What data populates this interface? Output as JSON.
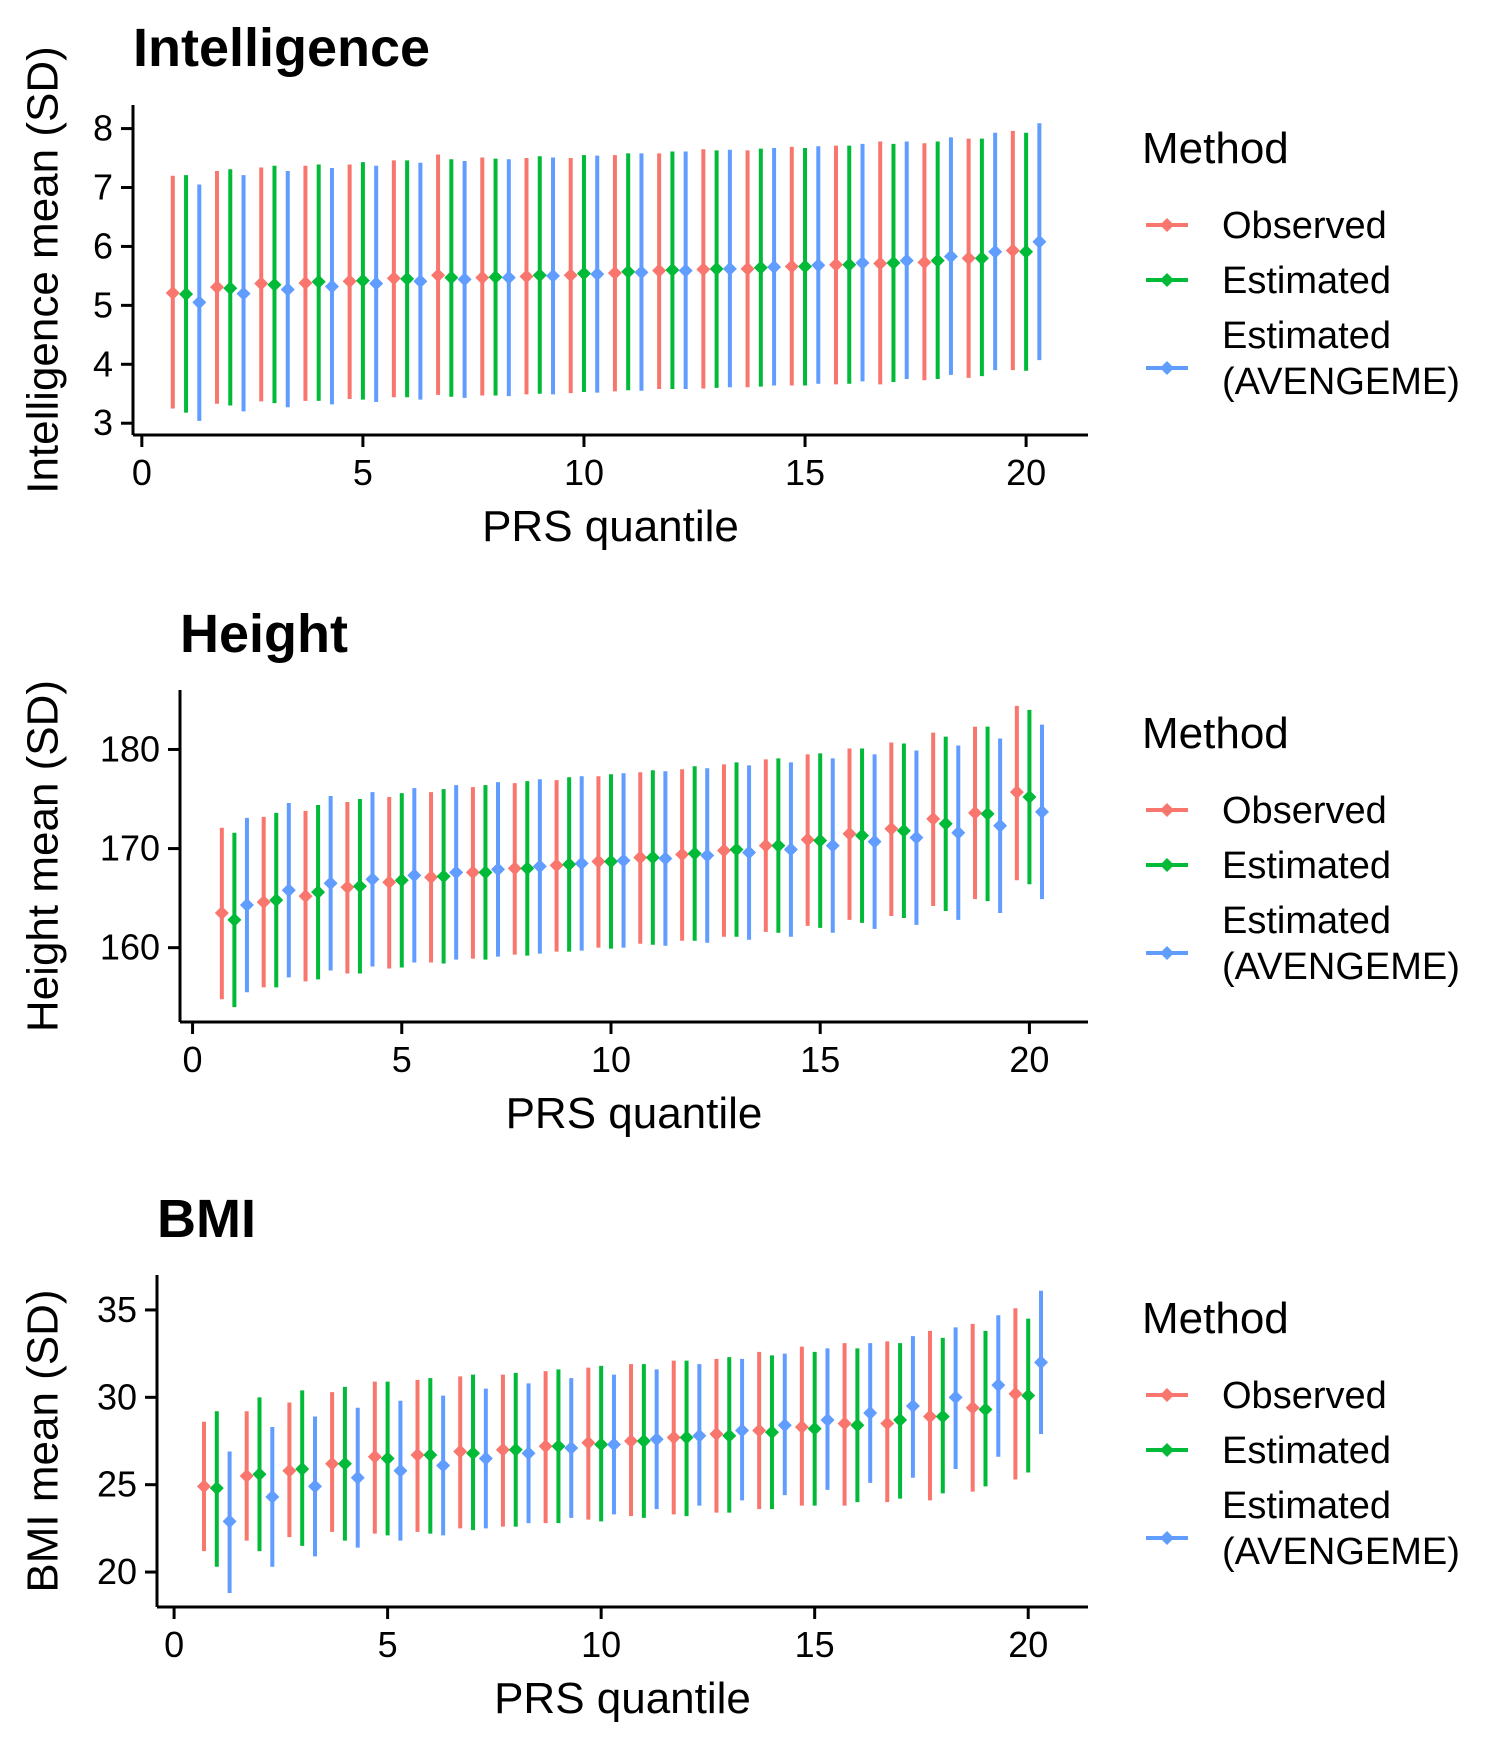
{
  "legend": {
    "title": "Method",
    "items": [
      {
        "key": "observed",
        "label_lines": [
          "Observed"
        ],
        "color": "#F8766D"
      },
      {
        "key": "estimated",
        "label_lines": [
          "Estimated"
        ],
        "color": "#00BA38"
      },
      {
        "key": "avengeme",
        "label_lines": [
          "Estimated",
          "(AVENGEME)"
        ],
        "color": "#619CFF"
      }
    ]
  },
  "chart_data": [
    {
      "type": "errorbar",
      "title": "Intelligence",
      "xlabel": "PRS quantile",
      "ylabel": "Intelligence mean (SD)",
      "xlim": [
        -0.2,
        21.4
      ],
      "ylim": [
        2.8,
        8.4
      ],
      "xticks": [
        0,
        5,
        10,
        15,
        20
      ],
      "yticks": [
        3,
        4,
        5,
        6,
        7,
        8
      ],
      "grid": false,
      "legend_position": "right",
      "series": [
        {
          "key": "observed",
          "x": [
            1,
            2,
            3,
            4,
            5,
            6,
            7,
            8,
            9,
            10,
            11,
            12,
            13,
            14,
            15,
            16,
            17,
            18,
            19,
            20
          ],
          "y": [
            5.21,
            5.31,
            5.37,
            5.38,
            5.41,
            5.46,
            5.51,
            5.47,
            5.49,
            5.51,
            5.55,
            5.59,
            5.61,
            5.62,
            5.66,
            5.69,
            5.71,
            5.73,
            5.8,
            5.93
          ],
          "lower": [
            3.25,
            3.33,
            3.37,
            3.38,
            3.41,
            3.44,
            3.48,
            3.47,
            3.49,
            3.51,
            3.54,
            3.58,
            3.59,
            3.61,
            3.64,
            3.66,
            3.66,
            3.73,
            3.77,
            3.9
          ],
          "upper": [
            7.2,
            7.28,
            7.34,
            7.37,
            7.39,
            7.46,
            7.56,
            7.51,
            7.5,
            7.5,
            7.55,
            7.58,
            7.65,
            7.63,
            7.69,
            7.71,
            7.78,
            7.75,
            7.83,
            7.96
          ]
        },
        {
          "key": "estimated",
          "x": [
            1,
            2,
            3,
            4,
            5,
            6,
            7,
            8,
            9,
            10,
            11,
            12,
            13,
            14,
            15,
            16,
            17,
            18,
            19,
            20
          ],
          "y": [
            5.19,
            5.29,
            5.35,
            5.4,
            5.42,
            5.45,
            5.47,
            5.48,
            5.51,
            5.54,
            5.57,
            5.6,
            5.62,
            5.64,
            5.66,
            5.69,
            5.72,
            5.76,
            5.8,
            5.91
          ],
          "lower": [
            3.18,
            3.3,
            3.34,
            3.38,
            3.4,
            3.44,
            3.45,
            3.47,
            3.5,
            3.53,
            3.56,
            3.58,
            3.6,
            3.62,
            3.64,
            3.67,
            3.7,
            3.75,
            3.8,
            3.89
          ],
          "upper": [
            7.21,
            7.31,
            7.37,
            7.39,
            7.43,
            7.46,
            7.48,
            7.49,
            7.53,
            7.55,
            7.58,
            7.61,
            7.63,
            7.66,
            7.67,
            7.71,
            7.74,
            7.78,
            7.83,
            7.93
          ]
        },
        {
          "key": "avengeme",
          "x": [
            1,
            2,
            3,
            4,
            5,
            6,
            7,
            8,
            9,
            10,
            11,
            12,
            13,
            14,
            15,
            16,
            17,
            18,
            19,
            20
          ],
          "y": [
            5.05,
            5.2,
            5.27,
            5.32,
            5.37,
            5.41,
            5.44,
            5.47,
            5.5,
            5.53,
            5.56,
            5.59,
            5.62,
            5.65,
            5.68,
            5.72,
            5.76,
            5.83,
            5.91,
            6.08
          ],
          "lower": [
            3.04,
            3.2,
            3.27,
            3.32,
            3.36,
            3.4,
            3.43,
            3.46,
            3.49,
            3.52,
            3.55,
            3.58,
            3.61,
            3.64,
            3.67,
            3.71,
            3.75,
            3.82,
            3.9,
            4.07
          ],
          "upper": [
            7.05,
            7.21,
            7.28,
            7.33,
            7.37,
            7.42,
            7.45,
            7.48,
            7.51,
            7.54,
            7.58,
            7.61,
            7.64,
            7.67,
            7.7,
            7.74,
            7.78,
            7.85,
            7.93,
            8.09
          ]
        }
      ]
    },
    {
      "type": "errorbar",
      "title": "Height",
      "xlabel": "PRS quantile",
      "ylabel": "Height mean (SD)",
      "xlim": [
        -0.3,
        21.4
      ],
      "ylim": [
        152.5,
        186
      ],
      "xticks": [
        0,
        5,
        10,
        15,
        20
      ],
      "yticks": [
        160,
        170,
        180
      ],
      "grid": false,
      "legend_position": "right",
      "series": [
        {
          "key": "observed",
          "x": [
            1,
            2,
            3,
            4,
            5,
            6,
            7,
            8,
            9,
            10,
            11,
            12,
            13,
            14,
            15,
            16,
            17,
            18,
            19,
            20
          ],
          "y": [
            163.5,
            164.6,
            165.2,
            166.1,
            166.6,
            167.1,
            167.6,
            168.0,
            168.3,
            168.7,
            169.1,
            169.4,
            169.8,
            170.3,
            170.9,
            171.5,
            172.0,
            173.0,
            173.6,
            175.7
          ],
          "lower": [
            154.8,
            156.0,
            156.6,
            157.4,
            157.9,
            158.5,
            158.9,
            159.3,
            159.6,
            160.0,
            160.4,
            160.7,
            161.1,
            161.6,
            162.2,
            162.8,
            163.2,
            164.2,
            164.9,
            166.8
          ],
          "upper": [
            172.1,
            173.2,
            173.8,
            174.7,
            175.2,
            175.7,
            176.2,
            176.6,
            176.9,
            177.3,
            177.7,
            178.0,
            178.5,
            179.0,
            179.5,
            180.1,
            180.7,
            181.7,
            182.3,
            184.4
          ]
        },
        {
          "key": "estimated",
          "x": [
            1,
            2,
            3,
            4,
            5,
            6,
            7,
            8,
            9,
            10,
            11,
            12,
            13,
            14,
            15,
            16,
            17,
            18,
            19,
            20
          ],
          "y": [
            162.8,
            164.8,
            165.6,
            166.2,
            166.8,
            167.2,
            167.6,
            168.0,
            168.4,
            168.7,
            169.1,
            169.5,
            169.9,
            170.3,
            170.8,
            171.3,
            171.8,
            172.5,
            173.5,
            175.2
          ],
          "lower": [
            154.0,
            156.0,
            156.8,
            157.4,
            158.0,
            158.4,
            158.8,
            159.2,
            159.6,
            159.9,
            160.3,
            160.7,
            161.1,
            161.5,
            162.0,
            162.5,
            163.0,
            163.7,
            164.7,
            166.4
          ],
          "upper": [
            171.6,
            173.6,
            174.4,
            175.0,
            175.6,
            176.0,
            176.4,
            176.8,
            177.2,
            177.5,
            177.9,
            178.3,
            178.7,
            179.1,
            179.6,
            180.1,
            180.6,
            181.3,
            182.3,
            184.0
          ]
        },
        {
          "key": "avengeme",
          "x": [
            1,
            2,
            3,
            4,
            5,
            6,
            7,
            8,
            9,
            10,
            11,
            12,
            13,
            14,
            15,
            16,
            17,
            18,
            19,
            20
          ],
          "y": [
            164.3,
            165.8,
            166.5,
            166.9,
            167.3,
            167.6,
            167.9,
            168.2,
            168.5,
            168.8,
            169.0,
            169.3,
            169.6,
            169.9,
            170.3,
            170.7,
            171.1,
            171.6,
            172.3,
            173.7
          ],
          "lower": [
            155.5,
            157.0,
            157.7,
            158.1,
            158.5,
            158.8,
            159.1,
            159.4,
            159.7,
            160.0,
            160.2,
            160.5,
            160.8,
            161.1,
            161.5,
            161.9,
            162.3,
            162.8,
            163.5,
            164.9
          ],
          "upper": [
            173.1,
            174.6,
            175.3,
            175.7,
            176.1,
            176.4,
            176.7,
            177.0,
            177.3,
            177.6,
            177.8,
            178.1,
            178.4,
            178.7,
            179.1,
            179.5,
            179.9,
            180.4,
            181.1,
            182.5
          ]
        }
      ]
    },
    {
      "type": "errorbar",
      "title": "BMI",
      "xlabel": "PRS quantile",
      "ylabel": "BMI mean (SD)",
      "xlim": [
        -0.4,
        21.4
      ],
      "ylim": [
        18,
        37
      ],
      "xticks": [
        0,
        5,
        10,
        15,
        20
      ],
      "yticks": [
        20,
        25,
        30,
        35
      ],
      "grid": false,
      "legend_position": "right",
      "series": [
        {
          "key": "observed",
          "x": [
            1,
            2,
            3,
            4,
            5,
            6,
            7,
            8,
            9,
            10,
            11,
            12,
            13,
            14,
            15,
            16,
            17,
            18,
            19,
            20
          ],
          "y": [
            24.9,
            25.5,
            25.8,
            26.2,
            26.6,
            26.7,
            26.9,
            27.0,
            27.2,
            27.4,
            27.5,
            27.7,
            27.9,
            28.1,
            28.3,
            28.5,
            28.5,
            28.9,
            29.4,
            30.2
          ],
          "lower": [
            21.2,
            21.8,
            22.0,
            22.3,
            22.2,
            22.3,
            22.5,
            22.6,
            22.8,
            23.0,
            23.2,
            23.3,
            23.4,
            23.6,
            23.8,
            23.8,
            24.0,
            24.1,
            24.6,
            25.3
          ],
          "upper": [
            28.6,
            29.2,
            29.7,
            30.3,
            30.9,
            31.0,
            31.2,
            31.3,
            31.5,
            31.7,
            31.9,
            32.1,
            32.2,
            32.6,
            32.9,
            33.1,
            33.2,
            33.8,
            34.2,
            35.1
          ]
        },
        {
          "key": "estimated",
          "x": [
            1,
            2,
            3,
            4,
            5,
            6,
            7,
            8,
            9,
            10,
            11,
            12,
            13,
            14,
            15,
            16,
            17,
            18,
            19,
            20
          ],
          "y": [
            24.8,
            25.6,
            25.9,
            26.2,
            26.5,
            26.7,
            26.8,
            27.0,
            27.2,
            27.3,
            27.5,
            27.7,
            27.8,
            28.0,
            28.2,
            28.4,
            28.7,
            28.9,
            29.3,
            30.1
          ],
          "lower": [
            20.3,
            21.2,
            21.5,
            21.8,
            22.1,
            22.2,
            22.4,
            22.6,
            22.8,
            22.9,
            23.1,
            23.2,
            23.4,
            23.6,
            23.8,
            24.0,
            24.2,
            24.5,
            24.9,
            25.7
          ],
          "upper": [
            29.2,
            30.0,
            30.4,
            30.6,
            30.9,
            31.1,
            31.3,
            31.4,
            31.6,
            31.8,
            31.9,
            32.1,
            32.3,
            32.4,
            32.6,
            32.8,
            33.1,
            33.4,
            33.8,
            34.5
          ]
        },
        {
          "key": "avengeme",
          "x": [
            1,
            2,
            3,
            4,
            5,
            6,
            7,
            8,
            9,
            10,
            11,
            12,
            13,
            14,
            15,
            16,
            17,
            18,
            19,
            20
          ],
          "y": [
            22.9,
            24.3,
            24.9,
            25.4,
            25.8,
            26.1,
            26.5,
            26.8,
            27.1,
            27.3,
            27.6,
            27.8,
            28.1,
            28.4,
            28.7,
            29.1,
            29.5,
            30.0,
            30.7,
            32.0
          ],
          "lower": [
            18.8,
            20.3,
            20.9,
            21.4,
            21.8,
            22.1,
            22.5,
            22.8,
            23.1,
            23.3,
            23.6,
            23.8,
            24.1,
            24.4,
            24.7,
            25.1,
            25.4,
            25.9,
            26.6,
            27.9
          ],
          "upper": [
            26.9,
            28.3,
            28.9,
            29.4,
            29.8,
            30.1,
            30.5,
            30.8,
            31.1,
            31.3,
            31.6,
            31.9,
            32.2,
            32.5,
            32.8,
            33.1,
            33.5,
            34.0,
            34.7,
            36.1
          ]
        }
      ]
    }
  ]
}
